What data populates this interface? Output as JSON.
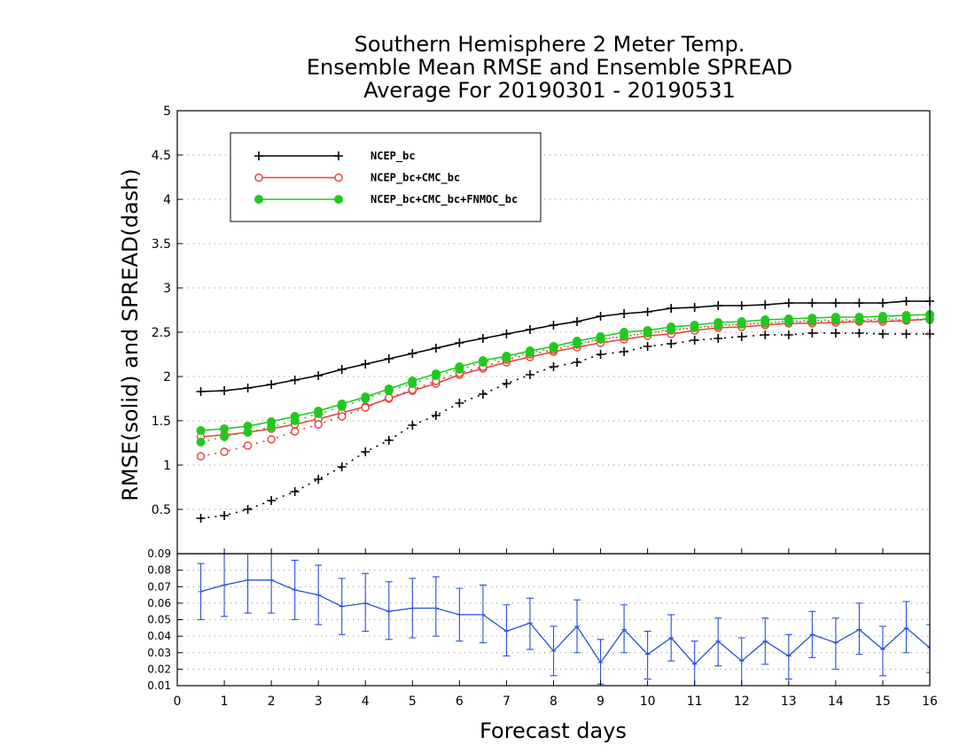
{
  "chart_data": [
    {
      "type": "line",
      "title": [
        "Southern Hemisphere 2 Meter Temp.",
        "Ensemble Mean RMSE and Ensemble SPREAD",
        "Average For 20190301 - 20190531"
      ],
      "xlabel": "Forecast days",
      "ylabel": "RMSE(solid) and SPREAD(dash)",
      "xlim": [
        0,
        16
      ],
      "ylim": [
        0,
        5
      ],
      "xticks": [
        "0",
        "1",
        "2",
        "3",
        "4",
        "5",
        "6",
        "7",
        "8",
        "9",
        "10",
        "11",
        "12",
        "13",
        "14",
        "15",
        "16"
      ],
      "yticks": [
        "0.5",
        "1",
        "1.5",
        "2",
        "2.5",
        "3",
        "3.5",
        "4",
        "4.5",
        "5"
      ],
      "grid": "horizontal dotted",
      "legend_position": "top-left",
      "x": [
        0.5,
        1,
        1.5,
        2,
        2.5,
        3,
        3.5,
        4,
        4.5,
        5,
        5.5,
        6,
        6.5,
        7,
        7.5,
        8,
        8.5,
        9,
        9.5,
        10,
        10.5,
        11,
        11.5,
        12,
        12.5,
        13,
        13.5,
        14,
        14.5,
        15,
        15.5,
        16
      ],
      "series": [
        {
          "name": "NCEP_bc",
          "color": "#000000",
          "marker": "plus",
          "rmse": [
            1.83,
            1.84,
            1.87,
            1.91,
            1.96,
            2.01,
            2.08,
            2.14,
            2.2,
            2.26,
            2.32,
            2.38,
            2.43,
            2.48,
            2.53,
            2.58,
            2.62,
            2.68,
            2.71,
            2.73,
            2.77,
            2.78,
            2.8,
            2.8,
            2.81,
            2.83,
            2.83,
            2.83,
            2.83,
            2.83,
            2.85,
            2.85
          ],
          "spread": [
            0.4,
            0.43,
            0.5,
            0.6,
            0.7,
            0.84,
            0.98,
            1.15,
            1.28,
            1.45,
            1.56,
            1.7,
            1.8,
            1.92,
            2.02,
            2.11,
            2.16,
            2.25,
            2.28,
            2.34,
            2.37,
            2.41,
            2.43,
            2.45,
            2.47,
            2.47,
            2.49,
            2.49,
            2.49,
            2.48,
            2.48,
            2.48
          ]
        },
        {
          "name": "NCEP_bc+CMC_bc",
          "color": "#e8403c",
          "marker": "open-circle",
          "rmse": [
            1.32,
            1.34,
            1.37,
            1.41,
            1.46,
            1.52,
            1.59,
            1.66,
            1.75,
            1.84,
            1.92,
            2.02,
            2.09,
            2.16,
            2.22,
            2.28,
            2.33,
            2.38,
            2.42,
            2.46,
            2.48,
            2.52,
            2.55,
            2.56,
            2.58,
            2.6,
            2.6,
            2.61,
            2.62,
            2.62,
            2.63,
            2.65
          ],
          "spread": [
            1.1,
            1.15,
            1.22,
            1.29,
            1.38,
            1.46,
            1.55,
            1.65,
            1.76,
            1.85,
            1.95,
            2.04,
            2.11,
            2.19,
            2.25,
            2.3,
            2.36,
            2.42,
            2.45,
            2.49,
            2.52,
            2.55,
            2.57,
            2.59,
            2.6,
            2.62,
            2.62,
            2.63,
            2.63,
            2.64,
            2.64,
            2.64
          ]
        },
        {
          "name": "NCEP_bc+CMC_bc+FNMOC_bc",
          "color": "#22c81e",
          "marker": "filled-circle",
          "rmse": [
            1.39,
            1.41,
            1.44,
            1.49,
            1.55,
            1.61,
            1.69,
            1.77,
            1.86,
            1.95,
            2.03,
            2.11,
            2.18,
            2.23,
            2.29,
            2.34,
            2.4,
            2.45,
            2.5,
            2.52,
            2.56,
            2.58,
            2.61,
            2.62,
            2.64,
            2.65,
            2.66,
            2.67,
            2.67,
            2.68,
            2.69,
            2.7
          ],
          "spread": [
            1.26,
            1.32,
            1.37,
            1.43,
            1.5,
            1.58,
            1.66,
            1.75,
            1.84,
            1.92,
            2.01,
            2.08,
            2.16,
            2.21,
            2.27,
            2.32,
            2.37,
            2.42,
            2.46,
            2.49,
            2.53,
            2.55,
            2.58,
            2.59,
            2.61,
            2.62,
            2.63,
            2.64,
            2.64,
            2.65,
            2.65,
            2.65
          ]
        }
      ]
    },
    {
      "type": "line",
      "subtype": "errorbar",
      "xlabel": "Forecast days",
      "xlim": [
        0,
        16
      ],
      "ylim": [
        0.01,
        0.09
      ],
      "yticks": [
        "0.01",
        "0.02",
        "0.03",
        "0.04",
        "0.05",
        "0.06",
        "0.07",
        "0.08",
        "0.09"
      ],
      "grid": "horizontal dotted",
      "color": "#2850d8",
      "x": [
        0.5,
        1,
        1.5,
        2,
        2.5,
        3,
        3.5,
        4,
        4.5,
        5,
        5.5,
        6,
        6.5,
        7,
        7.5,
        8,
        8.5,
        9,
        9.5,
        10,
        10.5,
        11,
        11.5,
        12,
        12.5,
        13,
        13.5,
        14,
        14.5,
        15,
        15.5,
        16
      ],
      "values": [
        0.067,
        0.071,
        0.074,
        0.074,
        0.068,
        0.065,
        0.058,
        0.06,
        0.055,
        0.057,
        0.057,
        0.053,
        0.053,
        0.043,
        0.048,
        0.031,
        0.046,
        0.024,
        0.044,
        0.029,
        0.039,
        0.023,
        0.037,
        0.025,
        0.037,
        0.028,
        0.041,
        0.036,
        0.044,
        0.032,
        0.045,
        0.033
      ],
      "low": [
        0.05,
        0.052,
        0.054,
        0.054,
        0.05,
        0.047,
        0.041,
        0.043,
        0.038,
        0.039,
        0.04,
        0.037,
        0.036,
        0.028,
        0.032,
        0.016,
        0.03,
        0.011,
        0.03,
        0.014,
        0.025,
        0.009,
        0.022,
        0.01,
        0.023,
        0.014,
        0.027,
        0.02,
        0.029,
        0.016,
        0.03,
        0.018
      ],
      "high": [
        0.084,
        0.09,
        0.094,
        0.094,
        0.086,
        0.083,
        0.075,
        0.078,
        0.073,
        0.075,
        0.076,
        0.069,
        0.071,
        0.059,
        0.063,
        0.046,
        0.062,
        0.038,
        0.059,
        0.043,
        0.053,
        0.037,
        0.051,
        0.039,
        0.051,
        0.041,
        0.055,
        0.051,
        0.06,
        0.046,
        0.061,
        0.047
      ]
    }
  ]
}
